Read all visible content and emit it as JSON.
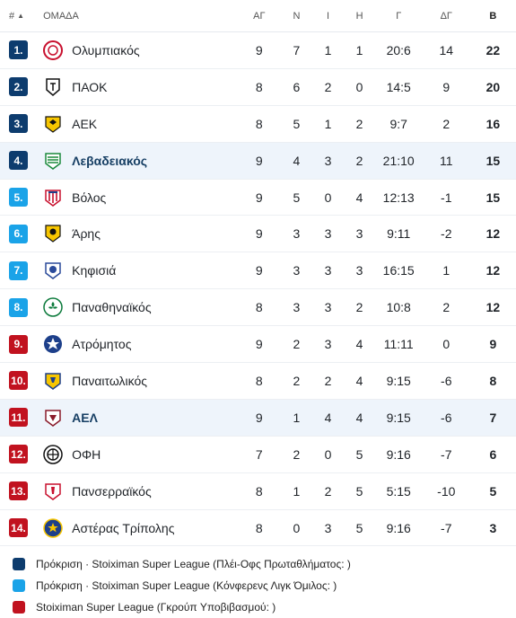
{
  "header": {
    "rank": "#",
    "team": "ΟΜΑΔΑ",
    "played": "ΑΓ",
    "wins": "Ν",
    "draws": "Ι",
    "losses": "Η",
    "goals": "Γ",
    "goal_diff": "ΔΓ",
    "points": "Β"
  },
  "colors": {
    "promo_champ": "#0d3c6e",
    "promo_conf": "#1aa3e8",
    "relegation": "#c1121f"
  },
  "rows": [
    {
      "rank": "1.",
      "team": "Ολυμπιακός",
      "played": "9",
      "wins": "7",
      "draws": "1",
      "losses": "1",
      "goals": "20:6",
      "goal_diff": "14",
      "points": "22",
      "zone": "promo_champ",
      "crest": "olympiacos-crest-icon"
    },
    {
      "rank": "2.",
      "team": "ΠΑΟΚ",
      "played": "8",
      "wins": "6",
      "draws": "2",
      "losses": "0",
      "goals": "14:5",
      "goal_diff": "9",
      "points": "20",
      "zone": "promo_champ",
      "crest": "paok-crest-icon"
    },
    {
      "rank": "3.",
      "team": "ΑΕΚ",
      "played": "8",
      "wins": "5",
      "draws": "1",
      "losses": "2",
      "goals": "9:7",
      "goal_diff": "2",
      "points": "16",
      "zone": "promo_champ",
      "crest": "aek-crest-icon"
    },
    {
      "rank": "4.",
      "team": "Λεβαδειακός",
      "played": "9",
      "wins": "4",
      "draws": "3",
      "losses": "2",
      "goals": "21:10",
      "goal_diff": "11",
      "points": "15",
      "zone": "promo_champ",
      "crest": "levadiakos-crest-icon",
      "highlight": true
    },
    {
      "rank": "5.",
      "team": "Βόλος",
      "played": "9",
      "wins": "5",
      "draws": "0",
      "losses": "4",
      "goals": "12:13",
      "goal_diff": "-1",
      "points": "15",
      "zone": "promo_conf",
      "crest": "volos-crest-icon"
    },
    {
      "rank": "6.",
      "team": "Άρης",
      "played": "9",
      "wins": "3",
      "draws": "3",
      "losses": "3",
      "goals": "9:11",
      "goal_diff": "-2",
      "points": "12",
      "zone": "promo_conf",
      "crest": "aris-crest-icon"
    },
    {
      "rank": "7.",
      "team": "Κηφισιά",
      "played": "9",
      "wins": "3",
      "draws": "3",
      "losses": "3",
      "goals": "16:15",
      "goal_diff": "1",
      "points": "12",
      "zone": "promo_conf",
      "crest": "kifisia-crest-icon"
    },
    {
      "rank": "8.",
      "team": "Παναθηναϊκός",
      "played": "8",
      "wins": "3",
      "draws": "3",
      "losses": "2",
      "goals": "10:8",
      "goal_diff": "2",
      "points": "12",
      "zone": "promo_conf",
      "crest": "panathinaikos-crest-icon"
    },
    {
      "rank": "9.",
      "team": "Ατρόμητος",
      "played": "9",
      "wins": "2",
      "draws": "3",
      "losses": "4",
      "goals": "11:11",
      "goal_diff": "0",
      "points": "9",
      "zone": "relegation",
      "crest": "atromitos-crest-icon"
    },
    {
      "rank": "10.",
      "team": "Παναιτωλικός",
      "played": "8",
      "wins": "2",
      "draws": "2",
      "losses": "4",
      "goals": "9:15",
      "goal_diff": "-6",
      "points": "8",
      "zone": "relegation",
      "crest": "panaitolikos-crest-icon"
    },
    {
      "rank": "11.",
      "team": "ΑΕΛ",
      "played": "9",
      "wins": "1",
      "draws": "4",
      "losses": "4",
      "goals": "9:15",
      "goal_diff": "-6",
      "points": "7",
      "zone": "relegation",
      "crest": "ael-crest-icon",
      "highlight": true
    },
    {
      "rank": "12.",
      "team": "ΟΦΗ",
      "played": "7",
      "wins": "2",
      "draws": "0",
      "losses": "5",
      "goals": "9:16",
      "goal_diff": "-7",
      "points": "6",
      "zone": "relegation",
      "crest": "ofi-crest-icon"
    },
    {
      "rank": "13.",
      "team": "Πανσερραϊκός",
      "played": "8",
      "wins": "1",
      "draws": "2",
      "losses": "5",
      "goals": "5:15",
      "goal_diff": "-10",
      "points": "5",
      "zone": "relegation",
      "crest": "panserraikos-crest-icon"
    },
    {
      "rank": "14.",
      "team": "Αστέρας Τρίπολης",
      "played": "8",
      "wins": "0",
      "draws": "3",
      "losses": "5",
      "goals": "9:16",
      "goal_diff": "-7",
      "points": "3",
      "zone": "relegation",
      "crest": "asteras-crest-icon"
    }
  ],
  "legend": [
    {
      "zone": "promo_champ",
      "text": "Πρόκριση · Stoiximan Super League (Πλέι-Οφς Πρωταθλήματος: )"
    },
    {
      "zone": "promo_conf",
      "text": "Πρόκριση · Stoiximan Super League (Κόνφερενς Λιγκ Όμιλος: )"
    },
    {
      "zone": "relegation",
      "text": "Stoiximan Super League (Γκρούπ Υποβιβασμού: )"
    }
  ]
}
